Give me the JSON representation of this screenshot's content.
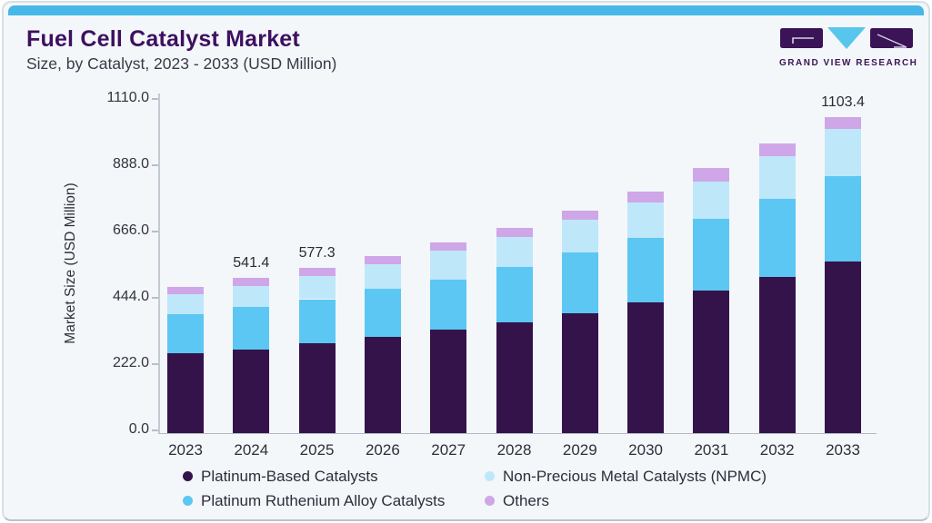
{
  "header": {
    "title": "Fuel Cell Catalyst Market",
    "subtitle": "Size, by Catalyst, 2023 - 2033 (USD Million)",
    "logo_text": "GRAND VIEW RESEARCH"
  },
  "colors": {
    "top_strip": "#47b7e8",
    "card_background": "#f3f7fa",
    "title_text": "#3e1060",
    "platinum_based": "#34134b",
    "platinum_ruthenium": "#5cc7f3",
    "npmc": "#bfe7fa",
    "others": "#cfa6e8"
  },
  "chart_data": {
    "type": "bar",
    "stacked": true,
    "title": "Fuel Cell Catalyst Market Size, by Catalyst, 2023 - 2033 (USD Million)",
    "xlabel": "",
    "ylabel": "Market Size (USD Million)",
    "ylim": [
      0,
      1110
    ],
    "ytick_labels": [
      "0.0",
      "222.0",
      "444.0",
      "666.0",
      "888.0",
      "1110.0"
    ],
    "grid": false,
    "legend_position": "bottom",
    "categories": [
      "2023",
      "2024",
      "2025",
      "2026",
      "2027",
      "2028",
      "2029",
      "2030",
      "2031",
      "2032",
      "2033"
    ],
    "series": [
      {
        "name": "Platinum-Based Catalysts",
        "color": "#34134b",
        "values": [
          280.0,
          292.0,
          313.5,
          334.8,
          360.1,
          386.7,
          418.4,
          455.2,
          496.4,
          545.2,
          600.0
        ]
      },
      {
        "name": "Platinum Ruthenium Alloy Catalysts",
        "color": "#5cc7f3",
        "values": [
          135.5,
          149.0,
          154.0,
          168.0,
          176.6,
          194.3,
          211.1,
          227.3,
          250.4,
          273.6,
          295.5
        ]
      },
      {
        "name": "Non-Precious Metal Catalysts (NPMC)",
        "color": "#bfe7fa",
        "values": [
          70.7,
          72.5,
          81.3,
          86.9,
          100.5,
          103.7,
          116.3,
          123.6,
          131.2,
          148.0,
          165.0
        ]
      },
      {
        "name": "Others",
        "color": "#cfa6e8",
        "values": [
          24.4,
          27.9,
          28.5,
          28.5,
          28.5,
          31.7,
          31.7,
          37.1,
          46.3,
          45.3,
          42.9
        ]
      }
    ],
    "totals": [
      510.6,
      541.4,
      577.3,
      618.2,
      665.7,
      716.4,
      777.5,
      843.2,
      924.3,
      1012.1,
      1103.4
    ],
    "value_labels": [
      "",
      "541.4",
      "577.3",
      "",
      "",
      "",
      "",
      "",
      "",
      "",
      "1103.4"
    ]
  },
  "legend": {
    "items": [
      {
        "label": "Platinum-Based Catalysts",
        "color": "#34134b"
      },
      {
        "label": "Non-Precious Metal Catalysts (NPMC)",
        "color": "#bfe7fa"
      },
      {
        "label": "Platinum Ruthenium Alloy Catalysts",
        "color": "#5cc7f3"
      },
      {
        "label": "Others",
        "color": "#cfa6e8"
      }
    ]
  }
}
